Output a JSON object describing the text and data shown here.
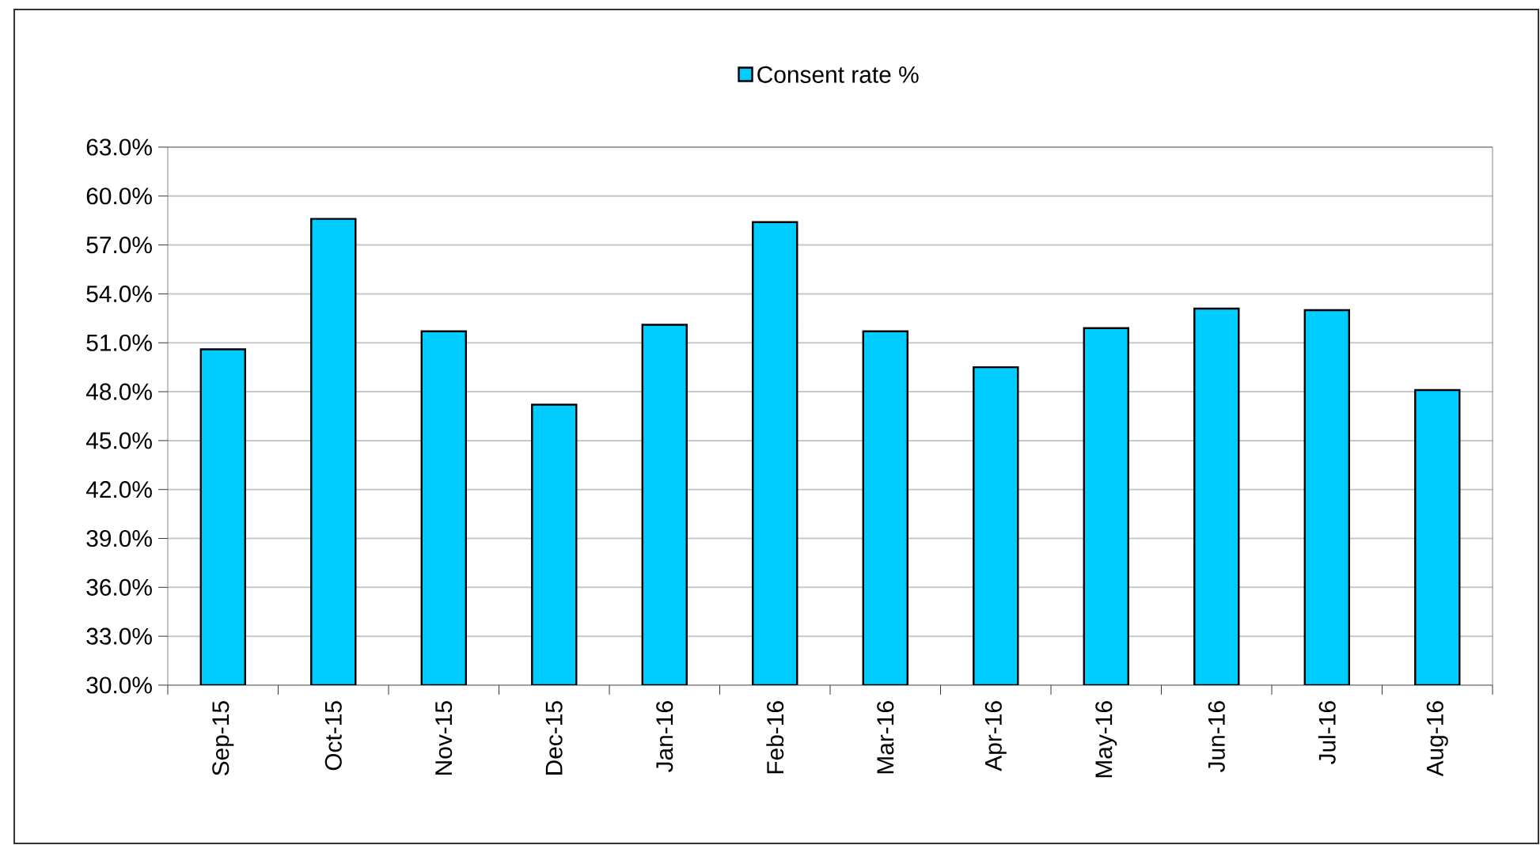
{
  "chart_data": {
    "type": "bar",
    "categories": [
      "Sep-15",
      "Oct-15",
      "Nov-15",
      "Dec-15",
      "Jan-16",
      "Feb-16",
      "Mar-16",
      "Apr-16",
      "May-16",
      "Jun-16",
      "Jul-16",
      "Aug-16"
    ],
    "series": [
      {
        "name": "Consent rate %",
        "color": "#00ccff",
        "values": [
          50.6,
          58.6,
          51.7,
          47.2,
          52.1,
          58.4,
          51.7,
          49.5,
          51.9,
          53.1,
          53.0,
          48.1
        ]
      }
    ],
    "ylim": [
      30,
      63
    ],
    "yticks": [
      {
        "value": 30,
        "label": "30.0%"
      },
      {
        "value": 33,
        "label": "33.0%"
      },
      {
        "value": 36,
        "label": "36.0%"
      },
      {
        "value": 39,
        "label": "39.0%"
      },
      {
        "value": 42,
        "label": "42.0%"
      },
      {
        "value": 45,
        "label": "45.0%"
      },
      {
        "value": 48,
        "label": "48.0%"
      },
      {
        "value": 51,
        "label": "51.0%"
      },
      {
        "value": 54,
        "label": "54.0%"
      },
      {
        "value": 57,
        "label": "57.0%"
      },
      {
        "value": 60,
        "label": "60.0%"
      },
      {
        "value": 63,
        "label": "63.0%"
      }
    ],
    "grid": "y",
    "legend": "top"
  }
}
